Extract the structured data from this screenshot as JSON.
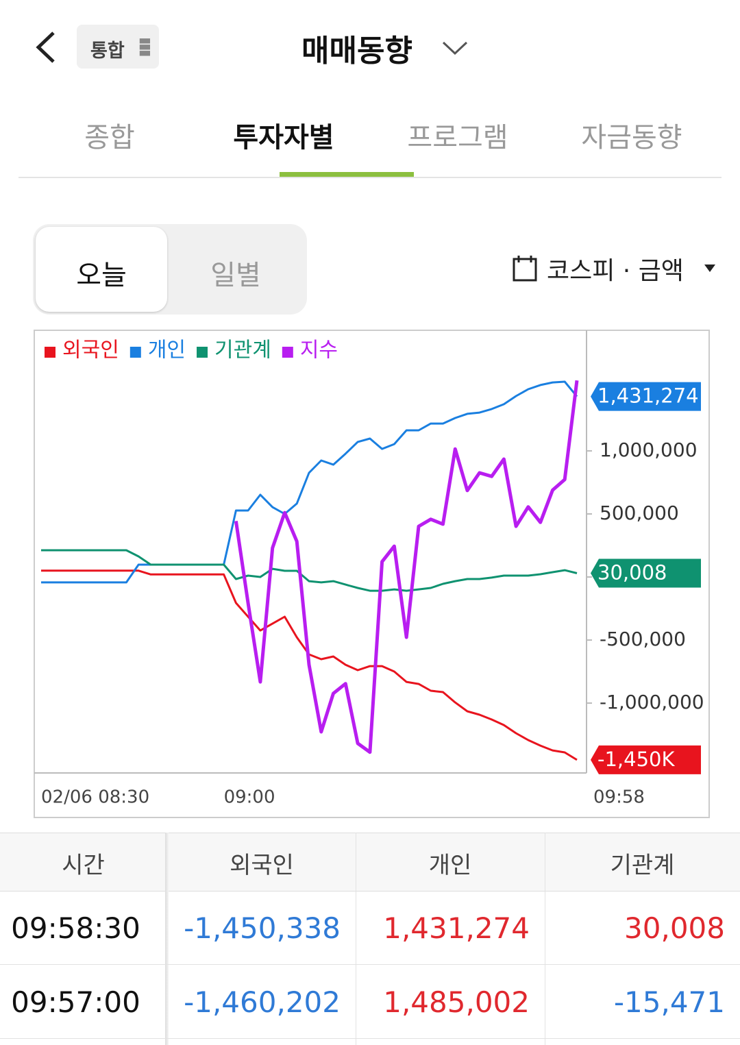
{
  "header": {
    "chip": "통합",
    "title": "매매동향"
  },
  "tabs": [
    "종합",
    "투자자별",
    "프로그램",
    "자금동향"
  ],
  "active_tab": 1,
  "period_toggle": [
    "오늘",
    "일별"
  ],
  "active_period": 0,
  "market_selector": "코스피 · 금액",
  "chart_data": {
    "type": "line",
    "categories": [
      "02/06 08:30",
      null,
      null,
      null,
      null,
      null,
      null,
      null,
      null,
      null,
      null,
      null,
      null,
      null,
      null,
      "09:00",
      null,
      null,
      null,
      null,
      null,
      null,
      null,
      null,
      null,
      null,
      null,
      null,
      null,
      null,
      null,
      null,
      null,
      null,
      null,
      null,
      null,
      null,
      null,
      null,
      null,
      null,
      null,
      null,
      "09:58"
    ],
    "series": [
      {
        "name": "외국인",
        "color": "#e8141e",
        "end_label": "-1,450K",
        "values": [
          50000,
          50000,
          50000,
          50000,
          50000,
          50000,
          50000,
          50000,
          50000,
          20000,
          20000,
          20000,
          20000,
          20000,
          20000,
          20000,
          -206000,
          -315000,
          -424000,
          -370000,
          -315000,
          -478000,
          -614000,
          -652000,
          -630000,
          -696000,
          -739000,
          -707000,
          -707000,
          -750000,
          -832000,
          -848000,
          -902000,
          -913000,
          -995000,
          -1065000,
          -1092000,
          -1130000,
          -1174000,
          -1239000,
          -1293000,
          -1337000,
          -1375000,
          -1391000,
          -1450338
        ]
      },
      {
        "name": "개인",
        "color": "#1a7fe0",
        "end_label": "1,431,274",
        "values": [
          -43000,
          -43000,
          -43000,
          -43000,
          -43000,
          -43000,
          -43000,
          -43000,
          98000,
          98000,
          98000,
          98000,
          98000,
          98000,
          98000,
          98000,
          527000,
          527000,
          652000,
          554000,
          500000,
          582000,
          826000,
          924000,
          891000,
          978000,
          1071000,
          1098000,
          1016000,
          1054000,
          1163000,
          1163000,
          1217000,
          1217000,
          1261000,
          1294000,
          1304000,
          1332000,
          1370000,
          1435000,
          1489000,
          1522000,
          1543000,
          1549000,
          1431274
        ]
      },
      {
        "name": "기관계",
        "color": "#0f9270",
        "end_label": "30,008",
        "values": [
          212000,
          212000,
          212000,
          212000,
          212000,
          212000,
          212000,
          212000,
          163000,
          98000,
          98000,
          98000,
          98000,
          98000,
          98000,
          98000,
          -16000,
          11000,
          0,
          65000,
          49000,
          49000,
          -33000,
          -43000,
          -33000,
          -60000,
          -87000,
          -109000,
          -109000,
          -98000,
          -109000,
          -98000,
          -87000,
          -54000,
          -33000,
          -16000,
          -16000,
          -5000,
          11000,
          11000,
          11000,
          22000,
          38000,
          54000,
          30008
        ]
      },
      {
        "name": "지수",
        "color": "#b81ef0",
        "axis": "y2",
        "values": [
          null,
          null,
          null,
          null,
          null,
          null,
          null,
          null,
          null,
          null,
          null,
          null,
          null,
          null,
          null,
          null,
          57,
          38.4,
          20.6,
          50.9,
          58.9,
          52.4,
          24.5,
          9.3,
          18,
          20.2,
          6.7,
          4.7,
          47.8,
          51.3,
          30.7,
          55.8,
          57.4,
          56.3,
          73.3,
          63.9,
          67.9,
          67.1,
          71,
          55.8,
          60.2,
          56.7,
          64,
          66.4,
          88.8
        ]
      }
    ],
    "ylim": [
      -1554000,
      1951000
    ],
    "yticks": [
      {
        "value": -1000000,
        "label": "-1,000,000"
      },
      {
        "value": -500000,
        "label": "-500,000"
      },
      0,
      {
        "value": 500000,
        "label": "500,000"
      },
      {
        "value": 1000000,
        "label": "1,000,000"
      }
    ],
    "y2lim": [
      0,
      100
    ],
    "legend": "top-left"
  },
  "table": {
    "columns": [
      "시간",
      "외국인",
      "개인",
      "기관계"
    ],
    "rows": [
      [
        "09:58:30",
        "-1,450,338",
        "1,431,274",
        "30,008"
      ],
      [
        "09:57:00",
        "-1,460,202",
        "1,485,002",
        "-15,471"
      ]
    ]
  }
}
